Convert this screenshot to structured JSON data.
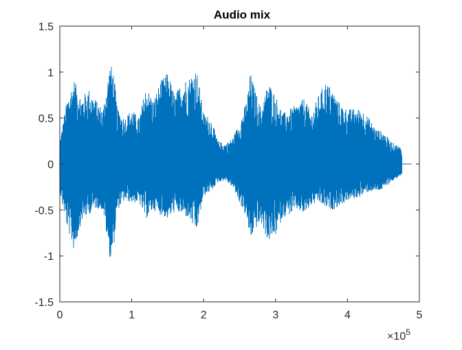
{
  "chart_data": {
    "type": "line",
    "title": "Audio mix",
    "xlabel": "",
    "ylabel": "",
    "x_exponent_label": "×10",
    "x_exponent_power": "5",
    "x_tick_values": [
      0,
      1,
      2,
      3,
      4,
      5
    ],
    "x_tick_labels": [
      "0",
      "1",
      "2",
      "3",
      "4",
      "5"
    ],
    "y_tick_values": [
      -1.5,
      -1,
      -0.5,
      0,
      0.5,
      1,
      1.5
    ],
    "y_tick_labels": [
      "-1.5",
      "-1",
      "-0.5",
      "0",
      "0.5",
      "1",
      "1.5"
    ],
    "xlim": [
      0,
      500000
    ],
    "ylim": [
      -1.5,
      1.5
    ],
    "grid": false,
    "series_color": "#0072BD",
    "signal_length_samples": 476000,
    "series": [
      {
        "x": [
          0,
          10000,
          20000,
          30000,
          40000,
          50000,
          60000,
          70000,
          75000,
          80000,
          90000,
          100000,
          110000,
          120000,
          130000,
          140000,
          150000,
          160000,
          170000,
          180000,
          190000,
          200000,
          210000,
          220000,
          230000,
          240000,
          250000,
          260000,
          265000,
          270000,
          280000,
          290000,
          300000,
          310000,
          320000,
          330000,
          340000,
          350000,
          360000,
          370000,
          380000,
          390000,
          400000,
          410000,
          420000,
          430000,
          440000,
          450000,
          460000,
          470000,
          476000
        ],
        "upper": [
          0.25,
          0.7,
          0.92,
          0.72,
          0.82,
          0.7,
          0.6,
          1.1,
          1.0,
          0.6,
          0.5,
          0.6,
          0.5,
          0.85,
          0.7,
          0.9,
          1.0,
          0.75,
          0.9,
          0.95,
          1.05,
          0.55,
          0.5,
          0.25,
          0.22,
          0.28,
          0.45,
          0.7,
          1.0,
          0.85,
          0.6,
          0.9,
          0.75,
          0.55,
          0.6,
          0.65,
          0.72,
          0.55,
          0.75,
          0.9,
          0.8,
          0.65,
          0.6,
          0.6,
          0.6,
          0.5,
          0.38,
          0.35,
          0.25,
          0.2,
          0.18
        ],
        "lower": [
          -0.3,
          -0.68,
          -0.95,
          -0.62,
          -0.55,
          -0.48,
          -0.5,
          -1.05,
          -0.9,
          -0.5,
          -0.4,
          -0.42,
          -0.42,
          -0.6,
          -0.5,
          -0.55,
          -0.6,
          -0.52,
          -0.55,
          -0.6,
          -0.75,
          -0.35,
          -0.3,
          -0.2,
          -0.18,
          -0.25,
          -0.42,
          -0.6,
          -0.85,
          -0.72,
          -0.65,
          -0.85,
          -0.78,
          -0.58,
          -0.55,
          -0.5,
          -0.55,
          -0.45,
          -0.42,
          -0.48,
          -0.5,
          -0.45,
          -0.4,
          -0.38,
          -0.35,
          -0.3,
          -0.3,
          -0.28,
          -0.2,
          -0.15,
          -0.12
        ]
      }
    ]
  }
}
